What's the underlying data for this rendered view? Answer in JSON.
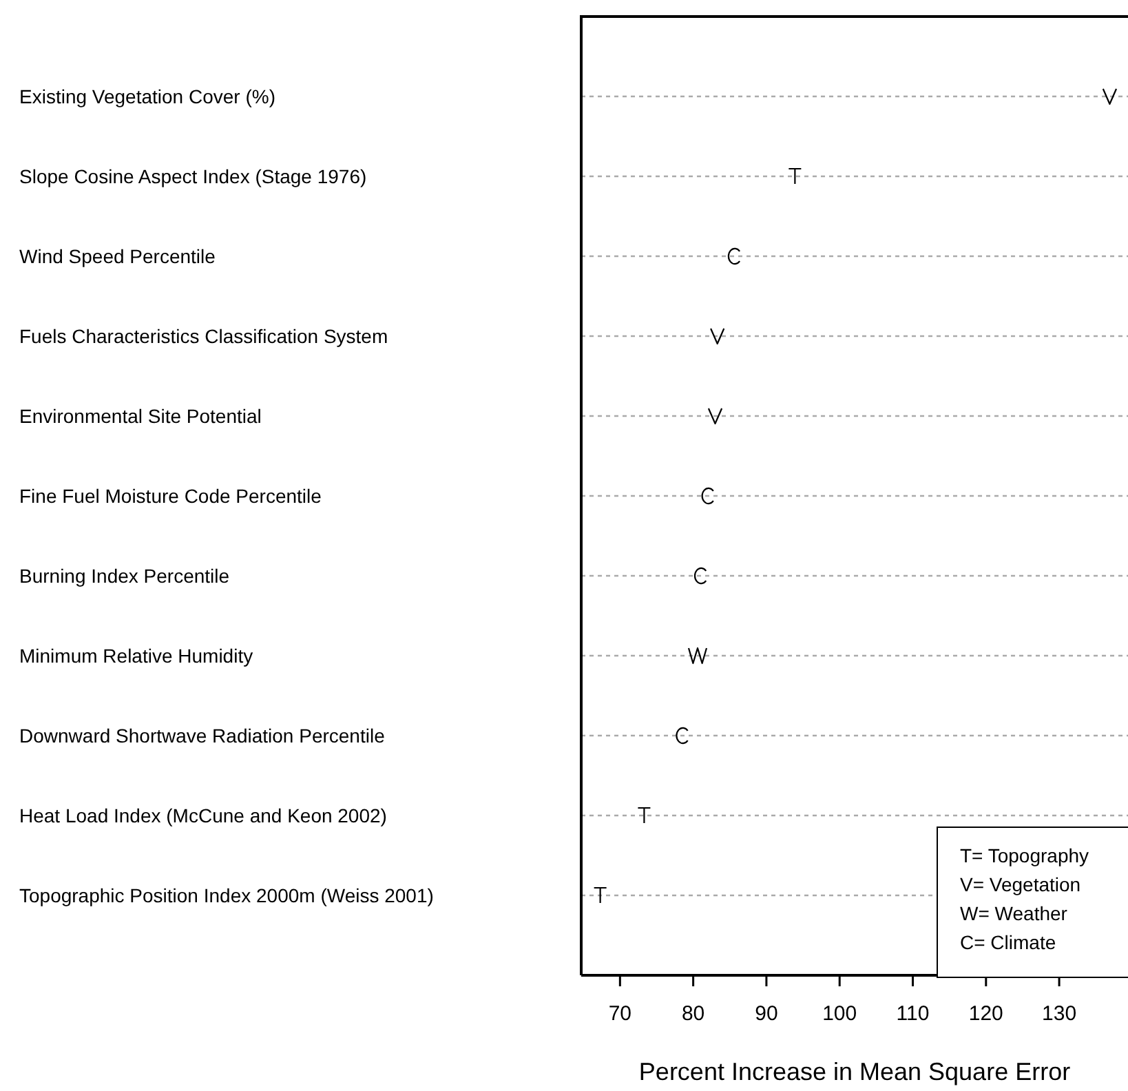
{
  "chart_data": {
    "type": "scatter",
    "xlabel": "Percent Increase in Mean Square Error",
    "categories": [
      "Existing Vegetation Cover (%)",
      "Slope Cosine Aspect Index (Stage 1976)",
      "Wind Speed Percentile",
      "Fuels Characteristics Classification System",
      "Environmental Site Potential",
      "Fine Fuel Moisture Code Percentile",
      "Burning Index Percentile",
      "Minimum Relative Humidity",
      "Downward Shortwave Radiation Percentile",
      "Heat Load Index (McCune and Keon 2002)",
      "Topographic Position Index 2000m (Weiss 2001)"
    ],
    "series": [
      {
        "color": "#000000",
        "values": [
          null,
          93.9,
          null,
          null,
          null,
          null,
          null,
          null,
          null,
          73.3,
          67.3
        ]
      },
      {
        "color": "#000000",
        "values": [
          136.9,
          null,
          null,
          83.3,
          83.0,
          null,
          null,
          null,
          null,
          null,
          null
        ]
      },
      {
        "color": "#000000",
        "values": [
          null,
          null,
          null,
          null,
          null,
          null,
          null,
          80.6,
          null,
          null,
          null
        ]
      },
      {
        "color": "#000000",
        "values": [
          null,
          null,
          85.6,
          null,
          null,
          82.0,
          81.0,
          null,
          78.5,
          null,
          null
        ]
      }
    ],
    "orientation": "horizontal",
    "xlim": [
      64.7,
      139.4
    ],
    "xticks": [
      70,
      80,
      90,
      100,
      110,
      120,
      130
    ],
    "grid": "y",
    "annotations": [
      "T= Topography",
      "V= Vegetation",
      "W= Weather",
      "C= Climate"
    ]
  }
}
